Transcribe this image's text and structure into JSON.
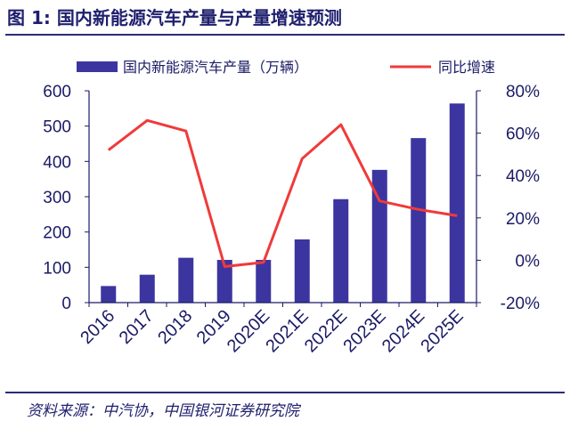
{
  "figure": {
    "title": "图 1:  国内新能源汽车产量与产量增速预测",
    "source": "资料来源：中汽协，中国银河证券研究院"
  },
  "chart_data": {
    "type": "bar",
    "title": "国内新能源汽车产量与产量增速预测",
    "categories": [
      "2016",
      "2017",
      "2018",
      "2019",
      "2020E",
      "2021E",
      "2022E",
      "2023E",
      "2024E",
      "2025E"
    ],
    "series": [
      {
        "name": "国内新能源汽车产量（万辆）",
        "type": "bar",
        "axis": "left",
        "color": "#3c35a0",
        "values": [
          47,
          79,
          127,
          121,
          121,
          179,
          293,
          376,
          466,
          564
        ]
      },
      {
        "name": "同比增速",
        "type": "line",
        "axis": "right",
        "color": "#f03a3a",
        "values": [
          52,
          66,
          61,
          -3,
          -1,
          48,
          64,
          28,
          24,
          21
        ]
      }
    ],
    "ylim_left": [
      0,
      600
    ],
    "yticks_left": [
      "0",
      "100",
      "200",
      "300",
      "400",
      "500",
      "600"
    ],
    "yticks_left_values": [
      0,
      100,
      200,
      300,
      400,
      500,
      600
    ],
    "ylim_right": [
      -20,
      80
    ],
    "yticks_right": [
      "-20%",
      "0%",
      "20%",
      "40%",
      "60%",
      "80%"
    ],
    "yticks_right_values": [
      -20,
      0,
      20,
      40,
      60,
      80
    ],
    "xlabel": "",
    "ylabel": "",
    "legend_position": "top",
    "grid": false,
    "axis_color": "#1a1a66"
  }
}
